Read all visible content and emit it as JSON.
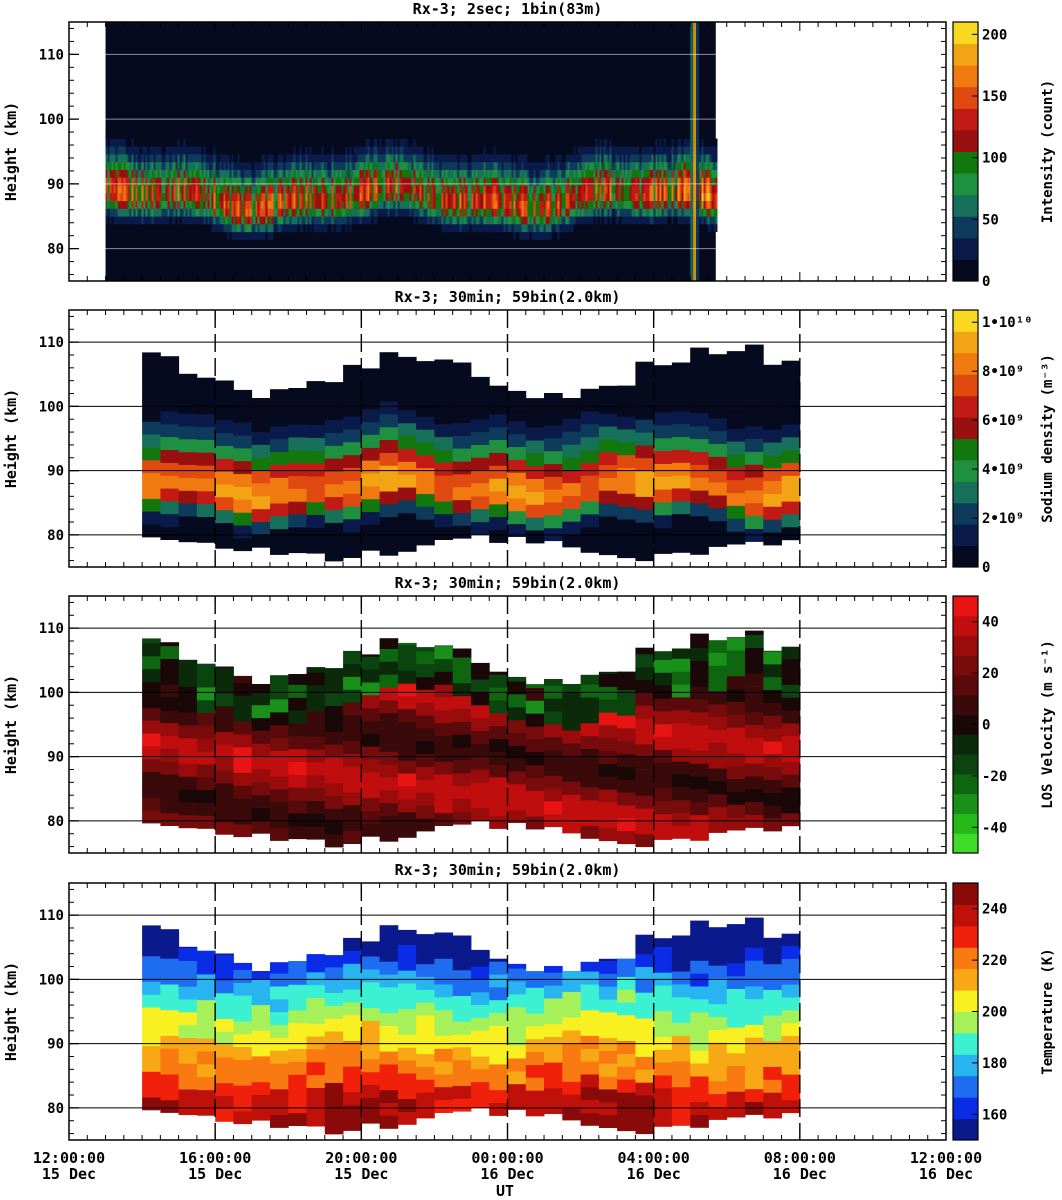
{
  "figure": {
    "x_axis_label": "UT",
    "x_ticks": [
      {
        "time": "12:00:00",
        "date": "15 Dec",
        "hours_from_start": 0
      },
      {
        "time": "16:00:00",
        "date": "15 Dec",
        "hours_from_start": 4
      },
      {
        "time": "20:00:00",
        "date": "15 Dec",
        "hours_from_start": 8
      },
      {
        "time": "00:00:00",
        "date": "16 Dec",
        "hours_from_start": 12
      },
      {
        "time": "04:00:00",
        "date": "16 Dec",
        "hours_from_start": 16
      },
      {
        "time": "08:00:00",
        "date": "16 Dec",
        "hours_from_start": 20
      },
      {
        "time": "12:00:00",
        "date": "16 Dec",
        "hours_from_start": 24
      }
    ],
    "colors": {
      "frame": "#000000",
      "background": "#ffffff",
      "nodata_dark": "#0a1230"
    }
  },
  "chart_data": [
    {
      "type": "heatmap",
      "title": "Rx-3;  2sec; 1bin(83m)",
      "ylabel": "Height (km)",
      "ylim": [
        75,
        115
      ],
      "yticks": [
        80,
        90,
        100,
        110
      ],
      "xlim_hours": [
        0,
        24
      ],
      "colorbar": {
        "label": "Intensity (count)",
        "ticks": [
          "0",
          "50",
          "100",
          "150",
          "200"
        ],
        "tick_values": [
          0,
          50,
          100,
          150,
          200
        ],
        "range": [
          0,
          210
        ],
        "colors": [
          "#050a1e",
          "#0a1a4a",
          "#0e3a5c",
          "#16705a",
          "#1f9040",
          "#12780e",
          "#9a0f0f",
          "#c21a14",
          "#e04a10",
          "#f07a10",
          "#f2a414",
          "#f8d820"
        ]
      },
      "data_extent_hours": [
        1,
        17.7
      ],
      "layer_peak_km": 87,
      "layer_top_km": 96,
      "layer_bottom_km": 80,
      "peak_intensity": 170
    },
    {
      "type": "heatmap",
      "title": "Rx-3; 30min; 59bin(2.0km)",
      "ylabel": "Height (km)",
      "ylim": [
        75,
        115
      ],
      "yticks": [
        80,
        90,
        100,
        110
      ],
      "xlim_hours": [
        0,
        24
      ],
      "colorbar": {
        "label": "Sodium density (m⁻³)",
        "ticks": [
          "0",
          "2•10⁹",
          "4•10⁹",
          "6•10⁹",
          "8•10⁹",
          "1•10¹⁰"
        ],
        "tick_values": [
          0,
          2000000000.0,
          4000000000.0,
          6000000000.0,
          8000000000.0,
          10000000000.0
        ],
        "range": [
          0,
          10500000000.0
        ],
        "colors": [
          "#050a1e",
          "#0a1a4a",
          "#0e3a5c",
          "#16705a",
          "#1f9040",
          "#12780e",
          "#9a0f0f",
          "#c21a14",
          "#e04a10",
          "#f07a10",
          "#f2a414",
          "#f8d820"
        ]
      },
      "data_extent_hours": [
        2,
        20
      ],
      "column_width_hours": 0.5,
      "bin_km": 2,
      "layer_peak_km": 87,
      "peak_density": 9400000000.0
    },
    {
      "type": "heatmap",
      "title": "Rx-3; 30min; 59bin(2.0km)",
      "ylabel": "Height (km)",
      "ylim": [
        75,
        115
      ],
      "yticks": [
        80,
        90,
        100,
        110
      ],
      "xlim_hours": [
        0,
        24
      ],
      "colorbar": {
        "label": "LOS Velocity (m s⁻¹)",
        "ticks": [
          "-40",
          "-20",
          "0",
          "20",
          "40"
        ],
        "tick_values": [
          -40,
          -20,
          0,
          20,
          40
        ],
        "range": [
          -50,
          50
        ],
        "colors": [
          "#3cdc28",
          "#26b818",
          "#18901a",
          "#0e6610",
          "#0c4410",
          "#0a2a0a",
          "#1a0808",
          "#3a0a0a",
          "#5a0a0a",
          "#780c0c",
          "#9a0c0c",
          "#c00e0e",
          "#e81414"
        ]
      },
      "data_extent_hours": [
        2,
        20
      ],
      "column_width_hours": 0.5,
      "bin_km": 2
    },
    {
      "type": "heatmap",
      "title": "Rx-3; 30min; 59bin(2.0km)",
      "ylabel": "Height (km)",
      "ylim": [
        75,
        115
      ],
      "yticks": [
        80,
        90,
        100,
        110
      ],
      "xlim_hours": [
        0,
        24
      ],
      "colorbar": {
        "label": "Temperature (K)",
        "ticks": [
          "160",
          "180",
          "200",
          "220",
          "240"
        ],
        "tick_values": [
          160,
          180,
          200,
          220,
          240
        ],
        "range": [
          150,
          250
        ],
        "colors": [
          "#0a1a8c",
          "#0a2ce6",
          "#1e6cf0",
          "#28b4f0",
          "#3cf0d2",
          "#a6f05a",
          "#f8f020",
          "#f8a814",
          "#f87a10",
          "#f0200a",
          "#c0100a",
          "#8a0a0a"
        ]
      },
      "data_extent_hours": [
        2,
        20
      ],
      "column_width_hours": 0.5,
      "bin_km": 2
    }
  ]
}
